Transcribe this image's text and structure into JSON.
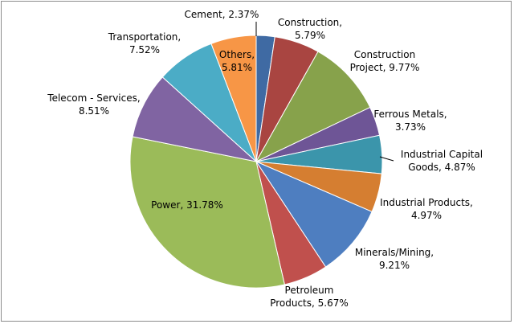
{
  "chart_data": {
    "type": "pie",
    "slices": [
      {
        "label": "Cement",
        "value": 2.37,
        "display": "Cement, 2.37%",
        "color": "#3f6aa3"
      },
      {
        "label": "Construction",
        "value": 5.79,
        "display": "Construction, 5.79%",
        "color": "#a94541"
      },
      {
        "label": "Construction Project",
        "value": 9.77,
        "display": "Construction Project, 9.77%",
        "color": "#87a24b"
      },
      {
        "label": "Ferrous Metals",
        "value": 3.73,
        "display": "Ferrous Metals, 3.73%",
        "color": "#6e5596"
      },
      {
        "label": "Industrial Capital Goods",
        "value": 4.87,
        "display": "Industrial Capital Goods, 4.87%",
        "color": "#3b95ab"
      },
      {
        "label": "Industrial Products",
        "value": 4.97,
        "display": "Industrial Products, 4.97%",
        "color": "#d57e31"
      },
      {
        "label": "Minerals/Mining",
        "value": 9.21,
        "display": "Minerals/Mining, 9.21%",
        "color": "#4e7ec0"
      },
      {
        "label": "Petroleum Products",
        "value": 5.67,
        "display": "Petroleum Products, 5.67%",
        "color": "#c0504d"
      },
      {
        "label": "Power",
        "value": 31.78,
        "display": "Power, 31.78%",
        "color": "#9bbb59"
      },
      {
        "label": "Telecom - Services",
        "value": 8.51,
        "display": "Telecom - Services, 8.51%",
        "color": "#8064a2"
      },
      {
        "label": "Transportation",
        "value": 7.52,
        "display": "Transportation, 7.52%",
        "color": "#4bacc6"
      },
      {
        "label": "Others",
        "value": 5.81,
        "display": "Others, 5.81%",
        "color": "#f79646"
      }
    ]
  }
}
